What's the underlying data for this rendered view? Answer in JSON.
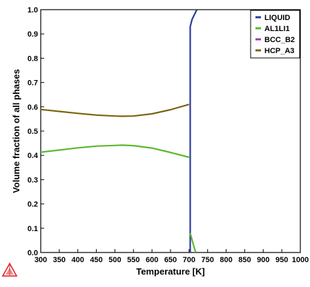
{
  "chart_data": {
    "type": "line",
    "xlabel": "Temperature [K]",
    "ylabel": "Volume fraction of all phases",
    "xlim": [
      300,
      1000
    ],
    "ylim": [
      0,
      1.0
    ],
    "xticks": [
      300,
      350,
      400,
      450,
      500,
      550,
      600,
      650,
      700,
      750,
      800,
      850,
      900,
      950,
      1000
    ],
    "yticks": [
      "0.0",
      "0.1",
      "0.2",
      "0.3",
      "0.4",
      "0.5",
      "0.6",
      "0.7",
      "0.8",
      "0.9",
      "1.0"
    ],
    "grid": false,
    "legend_position": "top-right",
    "series": [
      {
        "name": "LIQUID",
        "color": "#2a3a9a",
        "points": [
          [
            703,
            0.0
          ],
          [
            703,
            0.5
          ],
          [
            703,
            0.93
          ],
          [
            708,
            0.96
          ],
          [
            721,
            1.0
          ]
        ]
      },
      {
        "name": "AL1LI1",
        "color": "#5cb82e",
        "segments": [
          [
            [
              300,
              0.413
            ],
            [
              350,
              0.422
            ],
            [
              400,
              0.431
            ],
            [
              450,
              0.438
            ],
            [
              500,
              0.441
            ],
            [
              520,
              0.442
            ],
            [
              550,
              0.44
            ],
            [
              600,
              0.43
            ],
            [
              650,
              0.412
            ],
            [
              700,
              0.392
            ]
          ],
          [
            [
              703,
              0.08
            ],
            [
              712,
              0.03
            ],
            [
              718,
              0.0
            ]
          ]
        ]
      },
      {
        "name": "BCC_B2",
        "color": "#9b3fa8",
        "segments": []
      },
      {
        "name": "HCP_A3",
        "color": "#7a6410",
        "segments": [
          [
            [
              300,
              0.589
            ],
            [
              350,
              0.581
            ],
            [
              400,
              0.573
            ],
            [
              450,
              0.566
            ],
            [
              500,
              0.562
            ],
            [
              520,
              0.561
            ],
            [
              550,
              0.562
            ],
            [
              600,
              0.571
            ],
            [
              650,
              0.588
            ],
            [
              700,
              0.61
            ]
          ]
        ]
      }
    ]
  },
  "logo": {
    "name": "thermo-calc-logo-icon",
    "color": "#e0353a"
  }
}
